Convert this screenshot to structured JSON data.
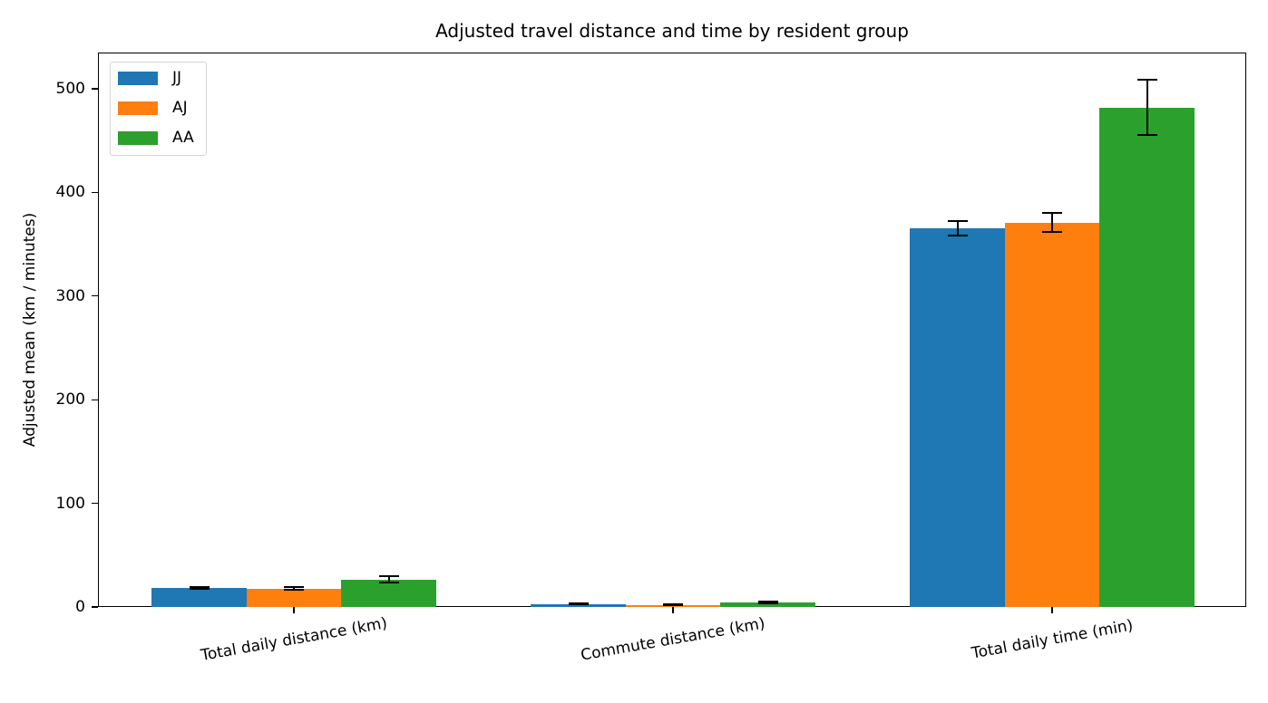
{
  "chart_data": {
    "type": "bar",
    "title": "Adjusted travel distance and time by resident group",
    "xlabel": "",
    "ylabel": "Adjusted mean (km / minutes)",
    "categories": [
      "Total daily distance (km)",
      "Commute distance (km)",
      "Total daily time (min)"
    ],
    "series": [
      {
        "name": "JJ",
        "color": "#1f77b4",
        "values": [
          18.5,
          2.8,
          365
        ],
        "errors": [
          1.0,
          0.6,
          7
        ]
      },
      {
        "name": "AJ",
        "color": "#ff7f0e",
        "values": [
          17.8,
          2.0,
          371
        ],
        "errors": [
          1.2,
          0.5,
          9
        ]
      },
      {
        "name": "AA",
        "color": "#2ca02c",
        "values": [
          26.5,
          4.5,
          482
        ],
        "errors": [
          3.0,
          0.7,
          27
        ]
      }
    ],
    "ylim": [
      0,
      535
    ],
    "yticks": [
      0,
      100,
      200,
      300,
      400,
      500
    ],
    "grid": false,
    "legend_position": "upper left",
    "error_bars": true
  },
  "legend": {
    "items": [
      {
        "label": "JJ",
        "color": "#1f77b4"
      },
      {
        "label": "AJ",
        "color": "#ff7f0e"
      },
      {
        "label": "AA",
        "color": "#2ca02c"
      }
    ]
  },
  "y_ticks": [
    "0",
    "100",
    "200",
    "300",
    "400",
    "500"
  ]
}
